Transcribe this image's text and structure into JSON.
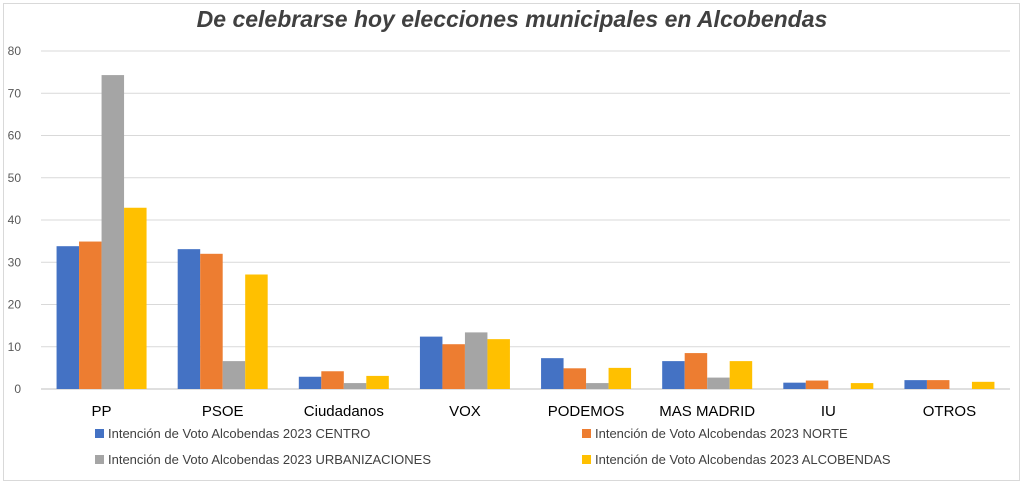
{
  "chart_data": {
    "type": "bar",
    "title": "De celebrarse hoy elecciones municipales en Alcobendas",
    "xlabel": "",
    "ylabel": "",
    "ylim": [
      0,
      80
    ],
    "yticks": [
      0,
      10,
      20,
      30,
      40,
      50,
      60,
      70,
      80
    ],
    "grid": true,
    "legend_position": "bottom",
    "categories": [
      "PP",
      "PSOE",
      "Ciudadanos",
      "VOX",
      "PODEMOS",
      "MAS MADRID",
      "IU",
      "OTROS"
    ],
    "series": [
      {
        "name": "Intención de Voto Alcobendas 2023 CENTRO",
        "color": "#4472c4",
        "values": [
          33.8,
          33.1,
          2.9,
          12.4,
          7.3,
          6.6,
          1.5,
          2.1
        ]
      },
      {
        "name": "Intención de Voto Alcobendas 2023 NORTE",
        "color": "#ed7d31",
        "values": [
          34.9,
          32.0,
          4.2,
          10.6,
          4.9,
          8.5,
          2.0,
          2.1
        ]
      },
      {
        "name": "Intención de Voto Alcobendas 2023 URBANIZACIONES",
        "color": "#a5a5a5",
        "values": [
          74.3,
          6.6,
          1.4,
          13.4,
          1.4,
          2.7,
          0,
          0
        ]
      },
      {
        "name": "Intención de Voto Alcobendas 2023 ALCOBENDAS",
        "color": "#ffc000",
        "values": [
          42.9,
          27.1,
          3.1,
          11.8,
          5.0,
          6.6,
          1.4,
          1.7
        ]
      }
    ]
  }
}
